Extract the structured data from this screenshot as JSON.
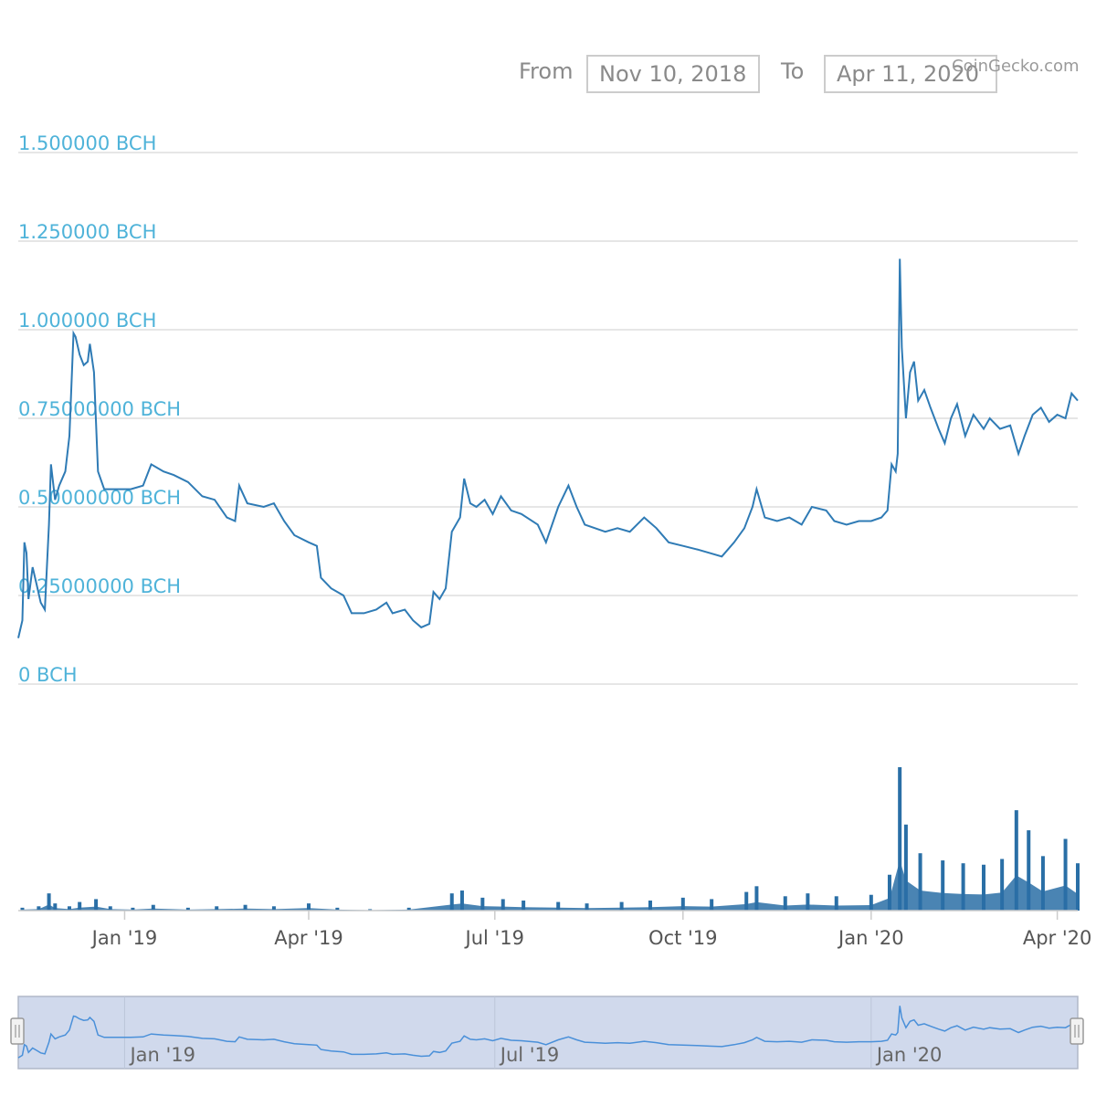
{
  "range_selector": {
    "from_label": "From",
    "from_value": "Nov 10, 2018",
    "to_label": "To",
    "to_value": "Apr 11, 2020"
  },
  "credits": "CoinGecko.com",
  "colors": {
    "price_line": "#2f7bb5",
    "volume_bar": "#2a6fa6",
    "y_label": "#4fb3d9",
    "grid": "#dddddd",
    "navigator_fill": "#d0d9ec",
    "navigator_line": "#4a90d9"
  },
  "navigator": {
    "ticks": [
      "Jan '19",
      "Jul '19",
      "Jan '20"
    ],
    "handle_left_icon": "drag-handle-icon",
    "handle_right_icon": "drag-handle-icon"
  },
  "chart_data": {
    "type": "line",
    "title": "",
    "xlabel": "",
    "ylabel": "",
    "x_range": [
      "2018-11-10",
      "2020-04-11"
    ],
    "ylim": [
      0,
      1.5
    ],
    "y_ticks": [
      "0 BCH",
      "0.25000000 BCH",
      "0.50000000 BCH",
      "0.75000000 BCH",
      "1.000000 BCH",
      "1.250000 BCH",
      "1.500000 BCH"
    ],
    "y_tick_values": [
      0,
      0.25,
      0.5,
      0.75,
      1.0,
      1.25,
      1.5
    ],
    "x_ticks": [
      {
        "label": "Jan '19",
        "date": "2019-01-01"
      },
      {
        "label": "Apr '19",
        "date": "2019-04-01"
      },
      {
        "label": "Jul '19",
        "date": "2019-07-01"
      },
      {
        "label": "Oct '19",
        "date": "2019-10-01"
      },
      {
        "label": "Jan '20",
        "date": "2020-01-01"
      },
      {
        "label": "Apr '20",
        "date": "2020-04-01"
      }
    ],
    "grid": true,
    "series": [
      {
        "unit": "BCH",
        "points": [
          [
            "2018-11-10",
            0.13
          ],
          [
            "2018-11-12",
            0.18
          ],
          [
            "2018-11-13",
            0.4
          ],
          [
            "2018-11-14",
            0.37
          ],
          [
            "2018-11-15",
            0.24
          ],
          [
            "2018-11-17",
            0.33
          ],
          [
            "2018-11-19",
            0.28
          ],
          [
            "2018-11-21",
            0.23
          ],
          [
            "2018-11-23",
            0.21
          ],
          [
            "2018-11-25",
            0.45
          ],
          [
            "2018-11-26",
            0.62
          ],
          [
            "2018-11-28",
            0.52
          ],
          [
            "2018-11-30",
            0.56
          ],
          [
            "2018-12-03",
            0.6
          ],
          [
            "2018-12-05",
            0.7
          ],
          [
            "2018-12-07",
            0.99
          ],
          [
            "2018-12-08",
            0.98
          ],
          [
            "2018-12-10",
            0.93
          ],
          [
            "2018-12-12",
            0.9
          ],
          [
            "2018-12-14",
            0.91
          ],
          [
            "2018-12-15",
            0.96
          ],
          [
            "2018-12-17",
            0.88
          ],
          [
            "2018-12-19",
            0.6
          ],
          [
            "2018-12-22",
            0.55
          ],
          [
            "2018-12-28",
            0.55
          ],
          [
            "2019-01-04",
            0.55
          ],
          [
            "2019-01-10",
            0.56
          ],
          [
            "2019-01-14",
            0.62
          ],
          [
            "2019-01-20",
            0.6
          ],
          [
            "2019-01-25",
            0.59
          ],
          [
            "2019-02-01",
            0.57
          ],
          [
            "2019-02-08",
            0.53
          ],
          [
            "2019-02-14",
            0.52
          ],
          [
            "2019-02-20",
            0.47
          ],
          [
            "2019-02-24",
            0.46
          ],
          [
            "2019-02-26",
            0.56
          ],
          [
            "2019-03-02",
            0.51
          ],
          [
            "2019-03-10",
            0.5
          ],
          [
            "2019-03-15",
            0.51
          ],
          [
            "2019-03-20",
            0.46
          ],
          [
            "2019-03-25",
            0.42
          ],
          [
            "2019-04-01",
            0.4
          ],
          [
            "2019-04-05",
            0.39
          ],
          [
            "2019-04-07",
            0.3
          ],
          [
            "2019-04-12",
            0.27
          ],
          [
            "2019-04-18",
            0.25
          ],
          [
            "2019-04-22",
            0.2
          ],
          [
            "2019-04-28",
            0.2
          ],
          [
            "2019-05-04",
            0.21
          ],
          [
            "2019-05-09",
            0.23
          ],
          [
            "2019-05-12",
            0.2
          ],
          [
            "2019-05-18",
            0.21
          ],
          [
            "2019-05-22",
            0.18
          ],
          [
            "2019-05-26",
            0.16
          ],
          [
            "2019-05-30",
            0.17
          ],
          [
            "2019-06-01",
            0.26
          ],
          [
            "2019-06-04",
            0.24
          ],
          [
            "2019-06-07",
            0.27
          ],
          [
            "2019-06-10",
            0.43
          ],
          [
            "2019-06-14",
            0.47
          ],
          [
            "2019-06-16",
            0.58
          ],
          [
            "2019-06-19",
            0.51
          ],
          [
            "2019-06-22",
            0.5
          ],
          [
            "2019-06-26",
            0.52
          ],
          [
            "2019-06-30",
            0.48
          ],
          [
            "2019-07-04",
            0.53
          ],
          [
            "2019-07-09",
            0.49
          ],
          [
            "2019-07-14",
            0.48
          ],
          [
            "2019-07-22",
            0.45
          ],
          [
            "2019-07-26",
            0.4
          ],
          [
            "2019-08-01",
            0.5
          ],
          [
            "2019-08-06",
            0.56
          ],
          [
            "2019-08-10",
            0.5
          ],
          [
            "2019-08-14",
            0.45
          ],
          [
            "2019-08-19",
            0.44
          ],
          [
            "2019-08-24",
            0.43
          ],
          [
            "2019-08-30",
            0.44
          ],
          [
            "2019-09-05",
            0.43
          ],
          [
            "2019-09-12",
            0.47
          ],
          [
            "2019-09-18",
            0.44
          ],
          [
            "2019-09-24",
            0.4
          ],
          [
            "2019-10-01",
            0.39
          ],
          [
            "2019-10-08",
            0.38
          ],
          [
            "2019-10-14",
            0.37
          ],
          [
            "2019-10-20",
            0.36
          ],
          [
            "2019-10-26",
            0.4
          ],
          [
            "2019-10-31",
            0.44
          ],
          [
            "2019-11-04",
            0.5
          ],
          [
            "2019-11-06",
            0.55
          ],
          [
            "2019-11-10",
            0.47
          ],
          [
            "2019-11-16",
            0.46
          ],
          [
            "2019-11-22",
            0.47
          ],
          [
            "2019-11-28",
            0.45
          ],
          [
            "2019-12-03",
            0.5
          ],
          [
            "2019-12-10",
            0.49
          ],
          [
            "2019-12-14",
            0.46
          ],
          [
            "2019-12-20",
            0.45
          ],
          [
            "2019-12-26",
            0.46
          ],
          [
            "2020-01-01",
            0.46
          ],
          [
            "2020-01-06",
            0.47
          ],
          [
            "2020-01-09",
            0.49
          ],
          [
            "2020-01-11",
            0.62
          ],
          [
            "2020-01-13",
            0.6
          ],
          [
            "2020-01-14",
            0.65
          ],
          [
            "2020-01-15",
            1.2
          ],
          [
            "2020-01-16",
            0.95
          ],
          [
            "2020-01-18",
            0.75
          ],
          [
            "2020-01-20",
            0.88
          ],
          [
            "2020-01-22",
            0.91
          ],
          [
            "2020-01-24",
            0.8
          ],
          [
            "2020-01-27",
            0.83
          ],
          [
            "2020-01-30",
            0.78
          ],
          [
            "2020-02-03",
            0.72
          ],
          [
            "2020-02-06",
            0.68
          ],
          [
            "2020-02-09",
            0.75
          ],
          [
            "2020-02-12",
            0.79
          ],
          [
            "2020-02-16",
            0.7
          ],
          [
            "2020-02-20",
            0.76
          ],
          [
            "2020-02-25",
            0.72
          ],
          [
            "2020-02-28",
            0.75
          ],
          [
            "2020-03-04",
            0.72
          ],
          [
            "2020-03-09",
            0.73
          ],
          [
            "2020-03-13",
            0.65
          ],
          [
            "2020-03-16",
            0.7
          ],
          [
            "2020-03-20",
            0.76
          ],
          [
            "2020-03-24",
            0.78
          ],
          [
            "2020-03-28",
            0.74
          ],
          [
            "2020-04-01",
            0.76
          ],
          [
            "2020-04-05",
            0.75
          ],
          [
            "2020-04-08",
            0.82
          ],
          [
            "2020-04-11",
            0.8
          ]
        ]
      },
      {
        "type": "bar",
        "unit": "BCH",
        "note": "volume, unlabeled scale, relative heights",
        "points": [
          [
            "2018-11-12",
            0.02
          ],
          [
            "2018-11-20",
            0.03
          ],
          [
            "2018-11-25",
            0.12
          ],
          [
            "2018-11-28",
            0.05
          ],
          [
            "2018-12-05",
            0.03
          ],
          [
            "2018-12-10",
            0.06
          ],
          [
            "2018-12-18",
            0.08
          ],
          [
            "2018-12-25",
            0.03
          ],
          [
            "2019-01-05",
            0.02
          ],
          [
            "2019-01-15",
            0.04
          ],
          [
            "2019-02-01",
            0.02
          ],
          [
            "2019-02-15",
            0.03
          ],
          [
            "2019-03-01",
            0.04
          ],
          [
            "2019-03-15",
            0.03
          ],
          [
            "2019-04-01",
            0.05
          ],
          [
            "2019-04-15",
            0.02
          ],
          [
            "2019-05-01",
            0.01
          ],
          [
            "2019-05-20",
            0.02
          ],
          [
            "2019-06-10",
            0.12
          ],
          [
            "2019-06-15",
            0.14
          ],
          [
            "2019-06-25",
            0.09
          ],
          [
            "2019-07-05",
            0.08
          ],
          [
            "2019-07-15",
            0.07
          ],
          [
            "2019-08-01",
            0.06
          ],
          [
            "2019-08-15",
            0.05
          ],
          [
            "2019-09-01",
            0.06
          ],
          [
            "2019-09-15",
            0.07
          ],
          [
            "2019-10-01",
            0.09
          ],
          [
            "2019-10-15",
            0.08
          ],
          [
            "2019-11-01",
            0.13
          ],
          [
            "2019-11-06",
            0.17
          ],
          [
            "2019-11-20",
            0.1
          ],
          [
            "2019-12-01",
            0.12
          ],
          [
            "2019-12-15",
            0.1
          ],
          [
            "2020-01-01",
            0.11
          ],
          [
            "2020-01-10",
            0.25
          ],
          [
            "2020-01-15",
            1.0
          ],
          [
            "2020-01-18",
            0.6
          ],
          [
            "2020-01-25",
            0.4
          ],
          [
            "2020-02-05",
            0.35
          ],
          [
            "2020-02-15",
            0.33
          ],
          [
            "2020-02-25",
            0.32
          ],
          [
            "2020-03-05",
            0.36
          ],
          [
            "2020-03-12",
            0.7
          ],
          [
            "2020-03-18",
            0.56
          ],
          [
            "2020-03-25",
            0.38
          ],
          [
            "2020-04-05",
            0.5
          ],
          [
            "2020-04-11",
            0.33
          ]
        ]
      }
    ]
  }
}
